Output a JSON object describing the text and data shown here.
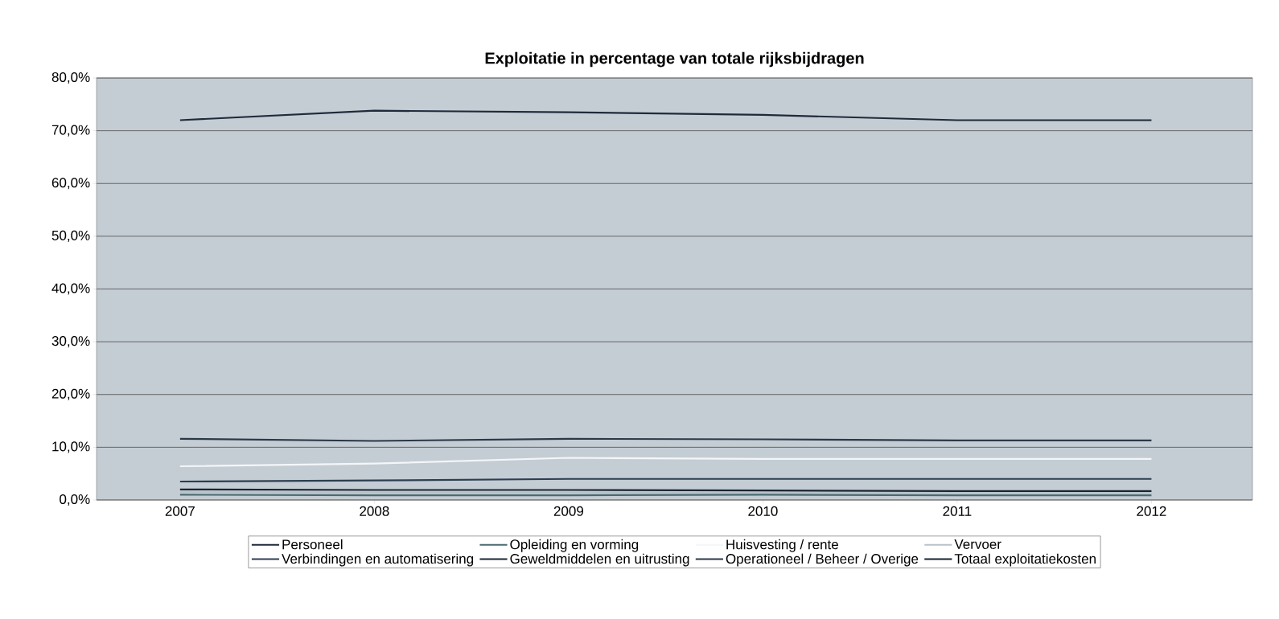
{
  "chart_data": {
    "type": "line",
    "title": "Exploitatie in percentage van totale rijksbijdragen",
    "categories": [
      "2007",
      "2008",
      "2009",
      "2010",
      "2011",
      "2012"
    ],
    "ylim": [
      0,
      80
    ],
    "yticks": [
      {
        "value": 0,
        "label": "0,0%"
      },
      {
        "value": 10,
        "label": "10,0%"
      },
      {
        "value": 20,
        "label": "20,0%"
      },
      {
        "value": 30,
        "label": "30,0%"
      },
      {
        "value": 40,
        "label": "40,0%"
      },
      {
        "value": 50,
        "label": "50,0%"
      },
      {
        "value": 60,
        "label": "60,0%"
      },
      {
        "value": 70,
        "label": "70,0%"
      },
      {
        "value": 80,
        "label": "80,0%"
      }
    ],
    "grid": "y",
    "legend": "bottom",
    "marker": "none",
    "line_style": "solid",
    "series": [
      {
        "name": "Personeel",
        "color": "#1f2a3a",
        "values": [
          72.0,
          73.8,
          73.5,
          73.0,
          72.0,
          72.0
        ]
      },
      {
        "name": "Opleiding en vorming",
        "color": "#4a6b70",
        "values": [
          1.0,
          0.9,
          0.9,
          1.0,
          0.9,
          0.9
        ]
      },
      {
        "name": "Huisvesting / rente",
        "color": "#f4f6f8",
        "values": [
          6.4,
          6.9,
          8.0,
          7.8,
          7.8,
          7.8
        ]
      },
      {
        "name": "Vervoer",
        "color": "#b8c2c8",
        "values": [
          1.5,
          1.4,
          1.4,
          1.4,
          1.4,
          1.4
        ]
      },
      {
        "name": "Verbindingen en automatisering",
        "color": "#2c3e50",
        "values": [
          3.5,
          3.7,
          4.0,
          4.0,
          4.0,
          4.0
        ]
      },
      {
        "name": "Geweldmiddelen en uitrusting",
        "color": "#1a2433",
        "values": [
          2.0,
          1.9,
          1.9,
          1.8,
          1.7,
          1.7
        ]
      },
      {
        "name": "Operationeel / Beheer / Overige",
        "color": "#2a3848",
        "values": [
          11.6,
          11.2,
          11.6,
          11.5,
          11.3,
          11.3
        ]
      },
      {
        "name": "Totaal exploitatiekosten",
        "color": "#16202e",
        "values": [
          null,
          null,
          null,
          null,
          null,
          null
        ]
      }
    ]
  }
}
